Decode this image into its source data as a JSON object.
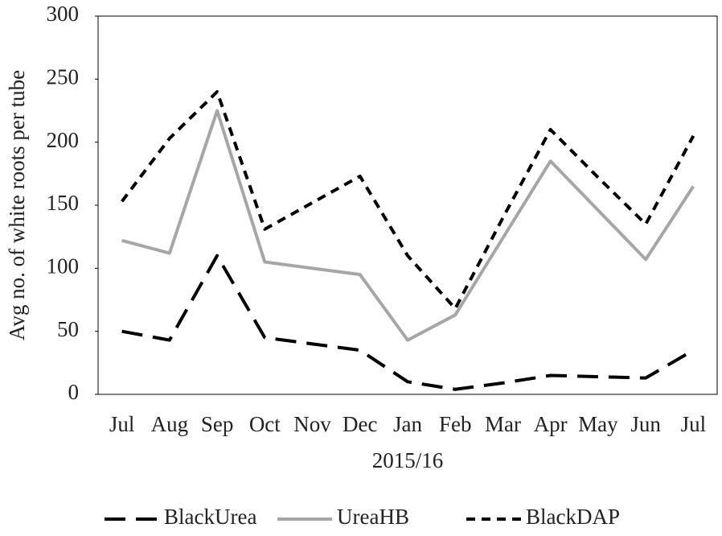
{
  "chart_data": {
    "type": "line",
    "x_label": "2015/16",
    "y_label": "Avg no. of white roots per tube",
    "categories": [
      "Jul",
      "Aug",
      "Sep",
      "Oct",
      "Nov",
      "Dec",
      "Jan",
      "Feb",
      "Mar",
      "Apr",
      "May",
      "Jun",
      "Jul"
    ],
    "series": [
      {
        "name": "BlackUrea",
        "color": "#000000",
        "line_style": "long-dash",
        "values": [
          50,
          43,
          110,
          45,
          40,
          35,
          10,
          4,
          9,
          15,
          14,
          13,
          35
        ]
      },
      {
        "name": "UreaHB",
        "color": "#a6a6a6",
        "line_style": "solid",
        "values": [
          122,
          112,
          225,
          105,
          100,
          95,
          43,
          63,
          124,
          185,
          146,
          107,
          165
        ]
      },
      {
        "name": "BlackDAP",
        "color": "#000000",
        "line_style": "dash",
        "values": [
          153,
          203,
          240,
          131,
          152,
          173,
          110,
          68,
          140,
          210,
          172,
          135,
          205
        ]
      }
    ],
    "ylim": [
      0,
      300
    ],
    "yticks": [
      0,
      50,
      100,
      150,
      200,
      250,
      300
    ],
    "grid": false,
    "legend": "bottom"
  }
}
